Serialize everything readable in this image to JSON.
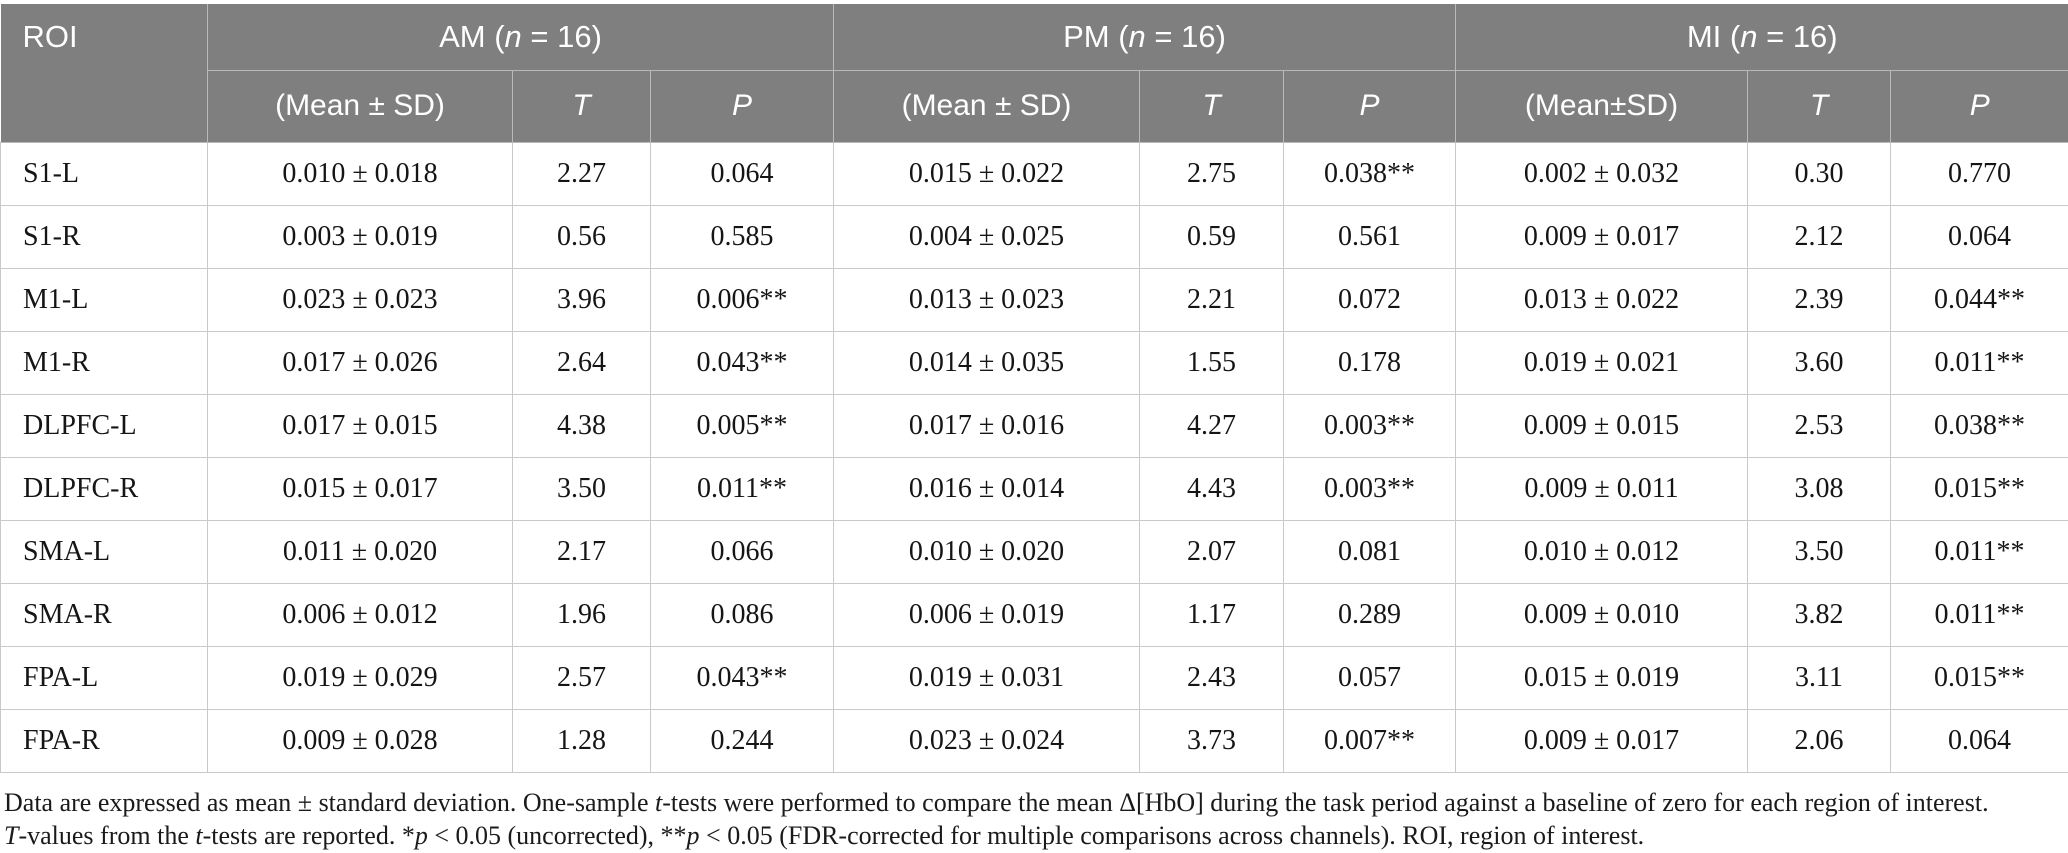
{
  "header": {
    "roi": "ROI",
    "groups": [
      {
        "title": [
          [
            "AM (",
            false
          ],
          [
            "n",
            true
          ],
          [
            " = 16)",
            false
          ]
        ],
        "subcols": [
          [
            [
              "(Mean ± SD)",
              false
            ]
          ],
          [
            [
              "T",
              true
            ]
          ],
          [
            [
              "P",
              true
            ]
          ]
        ]
      },
      {
        "title": [
          [
            "PM (",
            false
          ],
          [
            "n",
            true
          ],
          [
            " = 16)",
            false
          ]
        ],
        "subcols": [
          [
            [
              "(Mean ± SD)",
              false
            ]
          ],
          [
            [
              "T",
              true
            ]
          ],
          [
            [
              "P",
              true
            ]
          ]
        ]
      },
      {
        "title": [
          [
            "MI (",
            false
          ],
          [
            "n",
            true
          ],
          [
            " = 16)",
            false
          ]
        ],
        "subcols": [
          [
            [
              "(Mean±SD)",
              false
            ]
          ],
          [
            [
              "T",
              true
            ]
          ],
          [
            [
              "P",
              true
            ]
          ]
        ]
      }
    ]
  },
  "rows": [
    {
      "roi": "S1-L",
      "am": [
        "0.010 ± 0.018",
        "2.27",
        "0.064"
      ],
      "pm": [
        "0.015 ± 0.022",
        "2.75",
        "0.038**"
      ],
      "mi": [
        "0.002 ± 0.032",
        "0.30",
        "0.770"
      ]
    },
    {
      "roi": "S1-R",
      "am": [
        "0.003 ± 0.019",
        "0.56",
        "0.585"
      ],
      "pm": [
        "0.004 ± 0.025",
        "0.59",
        "0.561"
      ],
      "mi": [
        "0.009 ± 0.017",
        "2.12",
        "0.064"
      ]
    },
    {
      "roi": "M1-L",
      "am": [
        "0.023 ± 0.023",
        "3.96",
        "0.006**"
      ],
      "pm": [
        "0.013 ± 0.023",
        "2.21",
        "0.072"
      ],
      "mi": [
        "0.013 ± 0.022",
        "2.39",
        "0.044**"
      ]
    },
    {
      "roi": "M1-R",
      "am": [
        "0.017 ± 0.026",
        "2.64",
        "0.043**"
      ],
      "pm": [
        "0.014 ± 0.035",
        "1.55",
        "0.178"
      ],
      "mi": [
        "0.019 ± 0.021",
        "3.60",
        "0.011**"
      ]
    },
    {
      "roi": "DLPFC-L",
      "am": [
        "0.017 ± 0.015",
        "4.38",
        "0.005**"
      ],
      "pm": [
        "0.017 ± 0.016",
        "4.27",
        "0.003**"
      ],
      "mi": [
        "0.009 ± 0.015",
        "2.53",
        "0.038**"
      ]
    },
    {
      "roi": "DLPFC-R",
      "am": [
        "0.015 ± 0.017",
        "3.50",
        "0.011**"
      ],
      "pm": [
        "0.016 ± 0.014",
        "4.43",
        "0.003**"
      ],
      "mi": [
        "0.009 ± 0.011",
        "3.08",
        "0.015**"
      ]
    },
    {
      "roi": "SMA-L",
      "am": [
        "0.011 ± 0.020",
        "2.17",
        "0.066"
      ],
      "pm": [
        "0.010 ± 0.020",
        "2.07",
        "0.081"
      ],
      "mi": [
        "0.010 ± 0.012",
        "3.50",
        "0.011**"
      ]
    },
    {
      "roi": "SMA-R",
      "am": [
        "0.006 ± 0.012",
        "1.96",
        "0.086"
      ],
      "pm": [
        "0.006 ± 0.019",
        "1.17",
        "0.289"
      ],
      "mi": [
        "0.009 ± 0.010",
        "3.82",
        "0.011**"
      ]
    },
    {
      "roi": "FPA-L",
      "am": [
        "0.019 ± 0.029",
        "2.57",
        "0.043**"
      ],
      "pm": [
        "0.019 ± 0.031",
        "2.43",
        "0.057"
      ],
      "mi": [
        "0.015 ± 0.019",
        "3.11",
        "0.015**"
      ]
    },
    {
      "roi": "FPA-R",
      "am": [
        "0.009 ± 0.028",
        "1.28",
        "0.244"
      ],
      "pm": [
        "0.023 ± 0.024",
        "3.73",
        "0.007**"
      ],
      "mi": [
        "0.009 ± 0.017",
        "2.06",
        "0.064"
      ]
    }
  ],
  "footnote": {
    "lines": [
      [
        [
          "Data are expressed as mean ± standard deviation. One-sample ",
          false
        ],
        [
          "t",
          true
        ],
        [
          "-tests were performed to compare the mean Δ[HbO] during the task period against a baseline of zero for each region of interest.",
          false
        ]
      ],
      [
        [
          "T",
          true
        ],
        [
          "-values from the ",
          false
        ],
        [
          "t",
          true
        ],
        [
          "-tests are reported. *",
          false
        ],
        [
          "p",
          true
        ],
        [
          " < 0.05 (uncorrected), **",
          false
        ],
        [
          "p",
          true
        ],
        [
          " < 0.05 (FDR-corrected for multiple comparisons across channels). ROI, region of interest.",
          false
        ]
      ]
    ]
  },
  "colors": {
    "header_bg": "#7f7f7f",
    "header_text": "#ffffff",
    "header_border": "#b9b9b9",
    "body_border": "#c9c9c9",
    "body_text": "#151515"
  }
}
